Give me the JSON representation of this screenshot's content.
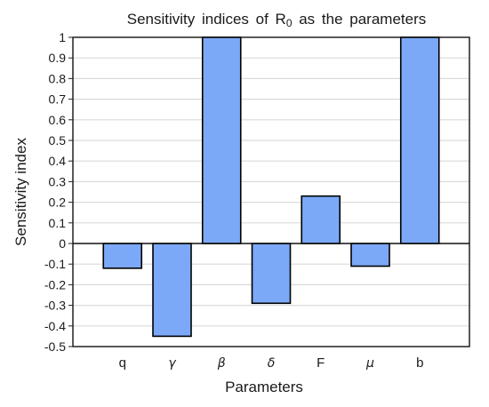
{
  "chart_data": {
    "type": "bar",
    "title": "Sensitivity indices of R",
    "title_subscript": "0",
    "title_suffix": " as the parameters",
    "xlabel": "Parameters",
    "ylabel": "Sensitivity index",
    "categories": [
      "q",
      "γ",
      "β",
      "δ",
      "F",
      "μ",
      "b"
    ],
    "italic_categories": [
      false,
      true,
      true,
      true,
      false,
      true,
      false
    ],
    "values": [
      -0.12,
      -0.45,
      1.0,
      -0.29,
      0.23,
      -0.11,
      1.0
    ],
    "ylim": [
      -0.5,
      1
    ],
    "yticks": [
      "-0.5",
      "-0.4",
      "-0.3",
      "-0.2",
      "-0.1",
      "0",
      "0.1",
      "0.2",
      "0.3",
      "0.4",
      "0.5",
      "0.6",
      "0.7",
      "0.8",
      "0.9",
      "1"
    ],
    "grid": true,
    "legend": "none",
    "bar_color": "#7ba9f7",
    "bar_edge_color": "#000000",
    "grid_color": "#dadada"
  }
}
